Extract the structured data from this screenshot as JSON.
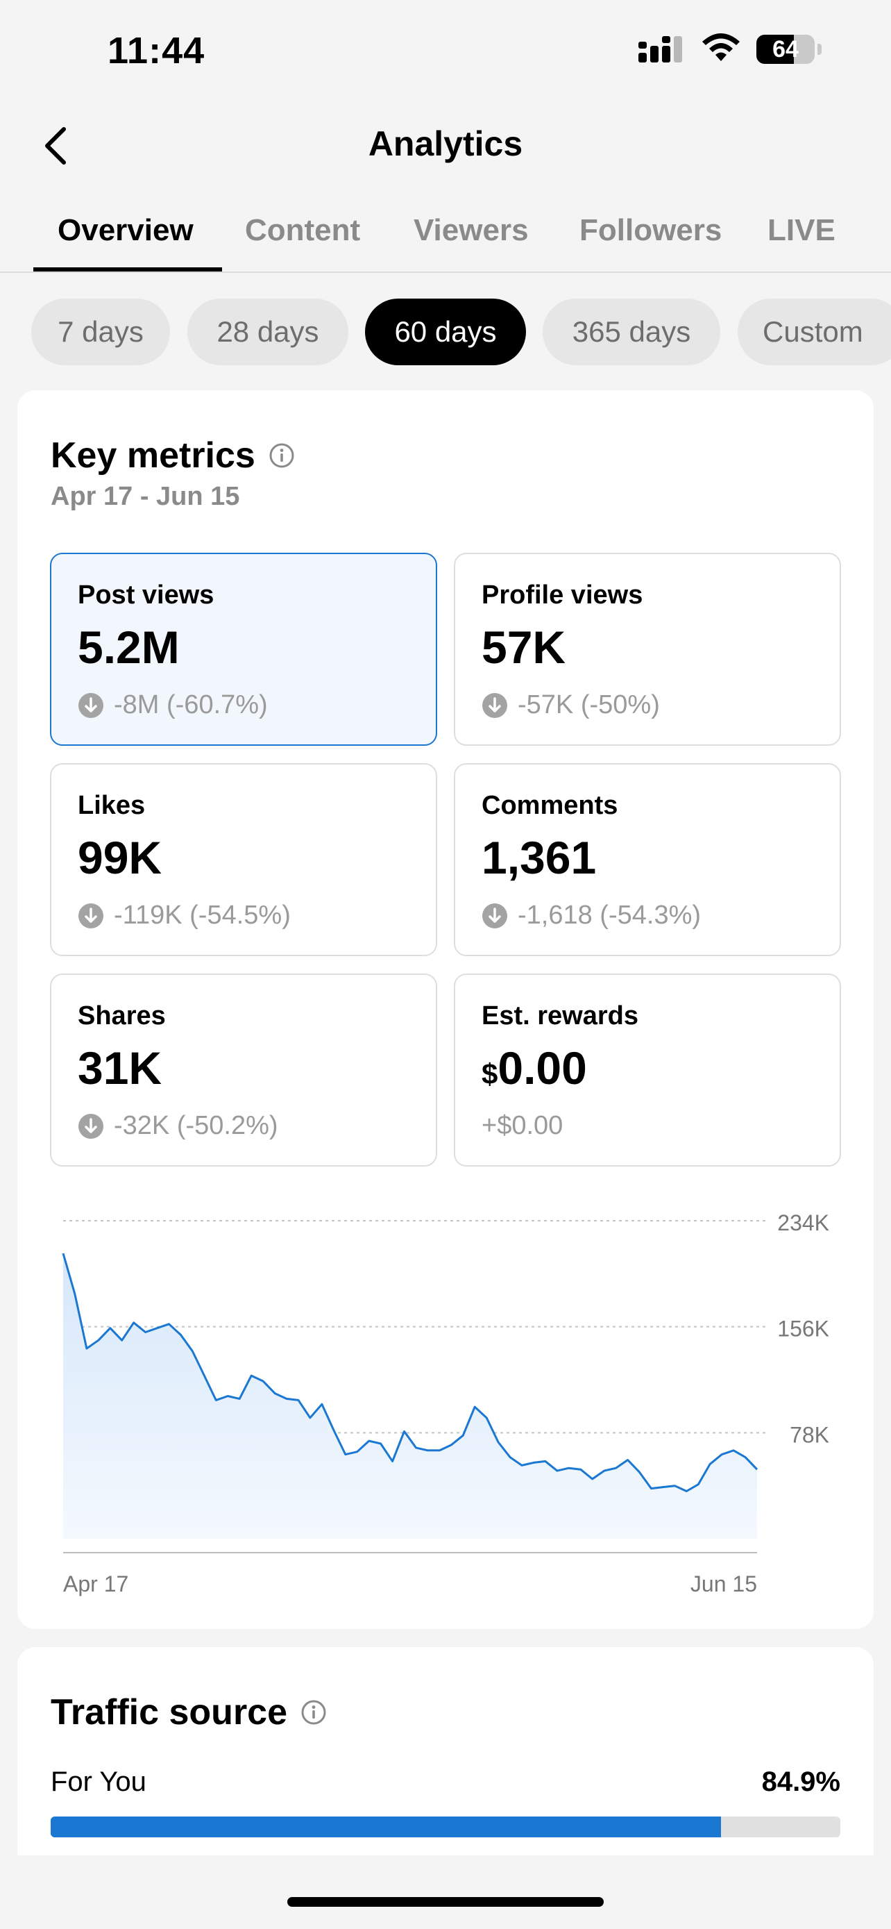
{
  "status_bar": {
    "time": "11:44",
    "battery_level": "64",
    "battery_fraction": 0.64
  },
  "header": {
    "title": "Analytics",
    "back_icon": "chevron-left-icon"
  },
  "tabs": [
    {
      "label": "Overview",
      "active": true
    },
    {
      "label": "Content",
      "active": false
    },
    {
      "label": "Viewers",
      "active": false
    },
    {
      "label": "Followers",
      "active": false
    },
    {
      "label": "LIVE",
      "active": false
    }
  ],
  "periods": [
    {
      "label": "7 days",
      "active": false
    },
    {
      "label": "28 days",
      "active": false
    },
    {
      "label": "60 days",
      "active": true
    },
    {
      "label": "365 days",
      "active": false
    },
    {
      "label": "Custom",
      "active": false
    }
  ],
  "key_metrics": {
    "title": "Key metrics",
    "date_range": "Apr 17 - Jun 15",
    "tiles": [
      {
        "label": "Post views",
        "value": "5.2M",
        "change": "-8M (-60.7%)",
        "selected": true
      },
      {
        "label": "Profile views",
        "value": "57K",
        "change": "-57K (-50%)",
        "selected": false
      },
      {
        "label": "Likes",
        "value": "99K",
        "change": "-119K (-54.5%)",
        "selected": false
      },
      {
        "label": "Comments",
        "value": "1,361",
        "change": "-1,618 (-54.3%)",
        "selected": false
      },
      {
        "label": "Shares",
        "value": "31K",
        "change": "-32K (-50.2%)",
        "selected": false
      },
      {
        "label": "Est. rewards",
        "currency": "$",
        "value": "0.00",
        "change": "+$0.00",
        "selected": false
      }
    ]
  },
  "chart_data": {
    "type": "area",
    "series": [
      {
        "values": [
          210,
          180,
          140,
          146,
          155,
          146,
          159,
          152,
          155,
          158,
          150,
          138,
          120,
          102,
          105,
          103,
          120,
          116,
          107,
          103,
          102,
          89,
          99,
          80,
          62,
          64,
          72,
          70,
          57,
          79,
          67,
          65,
          65,
          69,
          76,
          97,
          89,
          71,
          60,
          54,
          56,
          57,
          50,
          52,
          51,
          44,
          50,
          52,
          58,
          49,
          37,
          38,
          39,
          35,
          40,
          55,
          62,
          65,
          60,
          51
        ]
      }
    ],
    "x_start_label": "Apr 17",
    "x_end_label": "Jun 15",
    "y_ticks": [
      {
        "value": 234,
        "label": "234K"
      },
      {
        "value": 156,
        "label": "156K"
      },
      {
        "value": 78,
        "label": "78K"
      }
    ],
    "ylim": [
      0,
      234
    ],
    "grid": "dashed-horizontal",
    "line_color": "#1a77d2",
    "fill_color": "#e3effb"
  },
  "traffic_source": {
    "title": "Traffic source",
    "items": [
      {
        "label": "For You",
        "value": "84.9%",
        "fraction": 0.849
      }
    ]
  },
  "colors": {
    "accent": "#1a77d2",
    "muted": "#8a8a8a"
  }
}
